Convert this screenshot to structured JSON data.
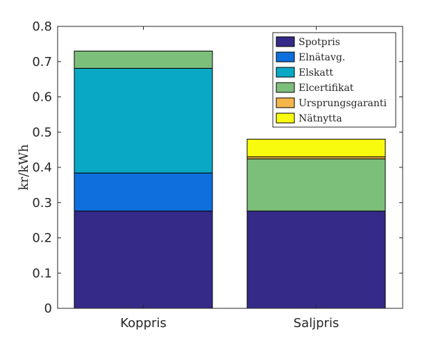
{
  "chart_data": {
    "type": "bar",
    "stacked": true,
    "title": "",
    "xlabel": "",
    "ylabel": "kr/kWh",
    "ylim": [
      0,
      0.8
    ],
    "yticks": [
      0,
      0.1,
      0.2,
      0.3,
      0.4,
      0.5,
      0.6,
      0.7,
      0.8
    ],
    "ytick_labels": [
      "0",
      "0.1",
      "0.2",
      "0.3",
      "0.4",
      "0.5",
      "0.6",
      "0.7",
      "0.8"
    ],
    "categories": [
      "Koppris",
      "Saljpris"
    ],
    "grid": false,
    "legend_position": "top-right",
    "series": [
      {
        "name": "Spotpris",
        "color": "#352a87",
        "values": [
          0.276,
          0.276
        ]
      },
      {
        "name": "Elnätavg.",
        "color": "#0f6fdc",
        "values": [
          0.108,
          0
        ]
      },
      {
        "name": "Elskatt",
        "color": "#09a8c4",
        "values": [
          0.297,
          0
        ]
      },
      {
        "name": "Elcertifikat",
        "color": "#7cbf7b",
        "values": [
          0.049,
          0.148
        ]
      },
      {
        "name": "Ursprungsgaranti",
        "color": "#f4b54a",
        "values": [
          0,
          0.006
        ]
      },
      {
        "name": "Nätnytta",
        "color": "#f9fb0e",
        "values": [
          0,
          0.05
        ]
      }
    ]
  }
}
